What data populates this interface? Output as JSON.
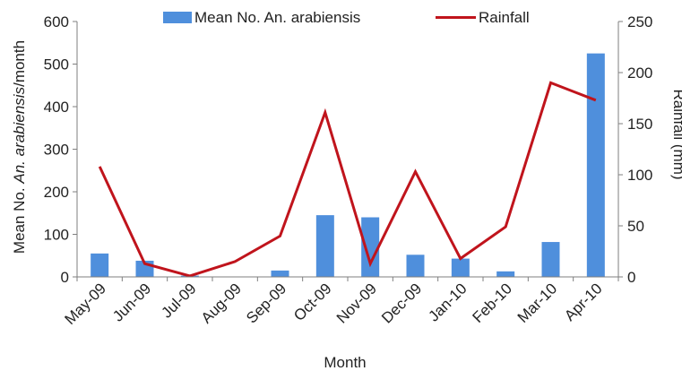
{
  "chart_data": {
    "type": "bar-line-combo",
    "categories": [
      "May-09",
      "Jun-09",
      "Jul-09",
      "Aug-09",
      "Sep-09",
      "Oct-09",
      "Nov-09",
      "Dec-09",
      "Jan-10",
      "Feb-10",
      "Mar-10",
      "Apr-10"
    ],
    "series": [
      {
        "name": "Mean No. An. arabiensis",
        "type": "bar",
        "axis": "left",
        "color": "#4f8fdc",
        "values": [
          55,
          38,
          3,
          0,
          15,
          145,
          140,
          52,
          43,
          13,
          82,
          525
        ]
      },
      {
        "name": "Rainfall",
        "type": "line",
        "axis": "right",
        "color": "#c0141c",
        "values": [
          108,
          13,
          1,
          15,
          40,
          161,
          13,
          103,
          18,
          49,
          190,
          173
        ]
      }
    ],
    "xlabel": "Month",
    "ylabel": {
      "prefix": "Mean No. ",
      "italic": "An. arabiensis",
      "suffix": "/month"
    },
    "y2label": "Rainfall (mm)",
    "ylim": [
      0,
      600
    ],
    "y2lim": [
      0,
      250
    ],
    "yticks": [
      "0",
      "100",
      "200",
      "300",
      "400",
      "500",
      "600"
    ],
    "y2ticks": [
      "0",
      "50",
      "100",
      "150",
      "200",
      "250"
    ],
    "grid": false,
    "legend": "top"
  }
}
